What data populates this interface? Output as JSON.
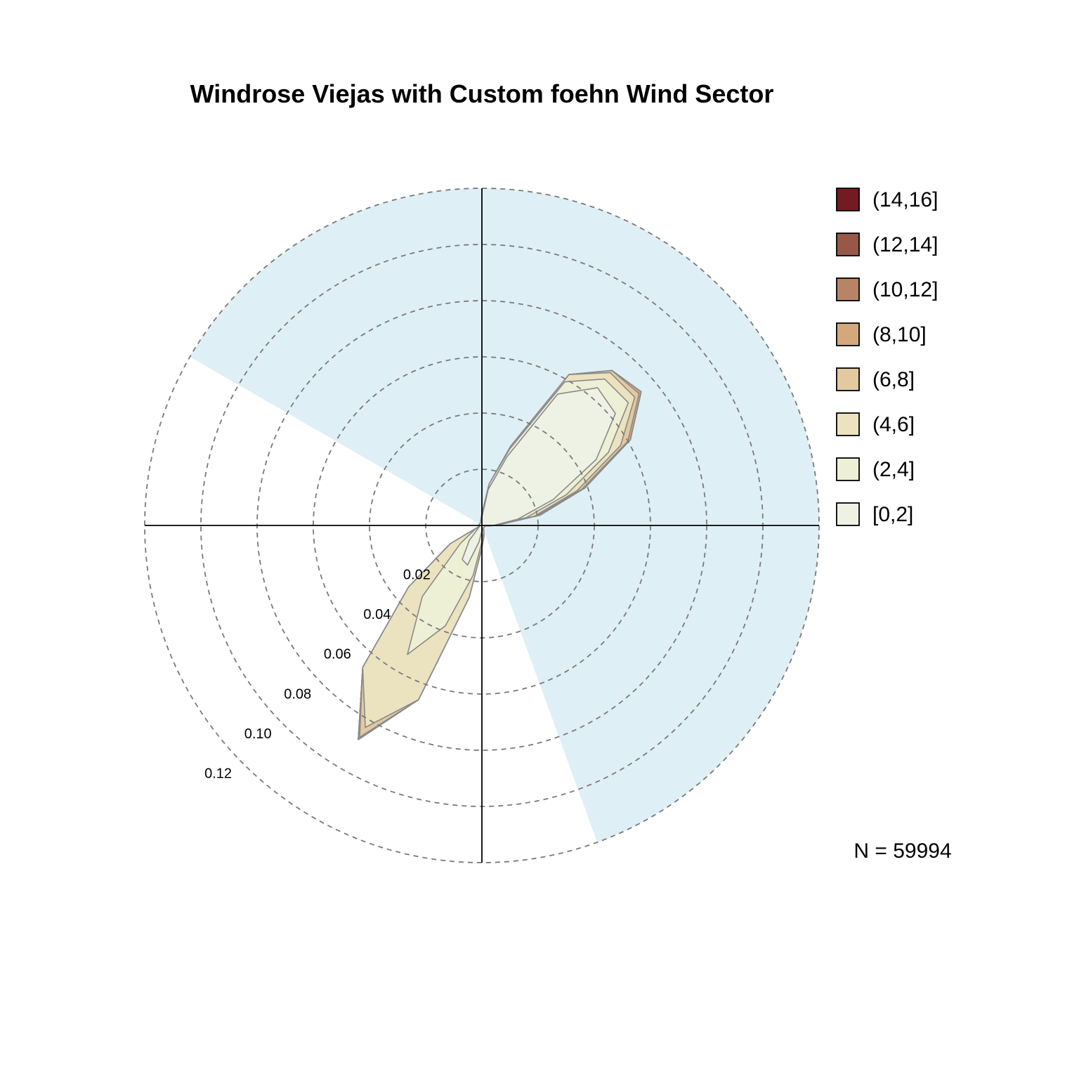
{
  "chart_data": {
    "type": "area",
    "subtype": "polar-windrose",
    "title": "Windrose Viejas with Custom foehn Wind Sector",
    "radial_axis": {
      "ticks": [
        0.02,
        0.04,
        0.06,
        0.08,
        0.1,
        0.12
      ],
      "tick_labels": [
        "0.02",
        "0.04",
        "0.06",
        "0.08",
        "0.10",
        "0.12"
      ],
      "max": 0.12,
      "grid": "dashed circles"
    },
    "foehn_sector": {
      "from_deg": 0,
      "to_deg": 360,
      "exclude_from_deg": 160,
      "exclude_to_deg": 300,
      "color": "#dfeff6"
    },
    "directions_deg": [
      0,
      10,
      20,
      30,
      40,
      50,
      60,
      70,
      80,
      90,
      100,
      110,
      120,
      130,
      140,
      150,
      160,
      170,
      180,
      190,
      200,
      210,
      220,
      230,
      240,
      250,
      260,
      270,
      280,
      290,
      300,
      310,
      320,
      330,
      340,
      350
    ],
    "series": [
      {
        "name": "[0,2]",
        "color": "#eef2e4",
        "values": [
          0.003,
          0.013,
          0.026,
          0.054,
          0.064,
          0.062,
          0.047,
          0.027,
          0.013,
          0.004,
          0.001,
          0.001,
          0.001,
          0.001,
          0.001,
          0.001,
          0.001,
          0.002,
          0.002,
          0.006,
          0.015,
          0.014,
          0.007,
          0.002,
          0.001,
          0.001,
          0.001,
          0.001,
          0.001,
          0.001,
          0.001,
          0.001,
          0.001,
          0.001,
          0.001,
          0.002
        ]
      },
      {
        "name": "(2,4]",
        "color": "#eef0d5",
        "values": [
          0.004,
          0.015,
          0.029,
          0.059,
          0.068,
          0.068,
          0.052,
          0.032,
          0.016,
          0.004,
          0.001,
          0.001,
          0.001,
          0.001,
          0.001,
          0.001,
          0.002,
          0.003,
          0.006,
          0.018,
          0.038,
          0.053,
          0.033,
          0.01,
          0.003,
          0.001,
          0.001,
          0.001,
          0.001,
          0.001,
          0.001,
          0.001,
          0.001,
          0.001,
          0.001,
          0.002
        ]
      },
      {
        "name": "(4,6]",
        "color": "#ebe2bf",
        "values": [
          0.004,
          0.015,
          0.03,
          0.062,
          0.071,
          0.071,
          0.057,
          0.036,
          0.019,
          0.005,
          0.001,
          0.001,
          0.001,
          0.001,
          0.001,
          0.001,
          0.002,
          0.004,
          0.008,
          0.026,
          0.066,
          0.083,
          0.066,
          0.034,
          0.013,
          0.001,
          0.001,
          0.001,
          0.001,
          0.001,
          0.001,
          0.001,
          0.001,
          0.001,
          0.001,
          0.002
        ]
      },
      {
        "name": "(6,8]",
        "color": "#e3c9a0",
        "values": [
          0.004,
          0.015,
          0.03,
          0.062,
          0.072,
          0.073,
          0.06,
          0.038,
          0.02,
          0.005,
          0.001,
          0.001,
          0.001,
          0.001,
          0.001,
          0.001,
          0.002,
          0.004,
          0.008,
          0.026,
          0.066,
          0.087,
          0.066,
          0.034,
          0.013,
          0.001,
          0.001,
          0.001,
          0.001,
          0.001,
          0.001,
          0.001,
          0.001,
          0.001,
          0.001,
          0.002
        ]
      },
      {
        "name": "(8,10]",
        "color": "#d3a87c",
        "values": [
          0.004,
          0.015,
          0.03,
          0.062,
          0.072,
          0.074,
          0.061,
          0.039,
          0.021,
          0.005,
          0.001,
          0.001,
          0.001,
          0.001,
          0.001,
          0.001,
          0.002,
          0.004,
          0.008,
          0.026,
          0.066,
          0.088,
          0.066,
          0.034,
          0.013,
          0.001,
          0.001,
          0.001,
          0.001,
          0.001,
          0.001,
          0.001,
          0.001,
          0.001,
          0.001,
          0.002
        ]
      },
      {
        "name": "(10,12]",
        "color": "#b98466",
        "values": [
          0.004,
          0.015,
          0.03,
          0.062,
          0.072,
          0.074,
          0.061,
          0.039,
          0.021,
          0.005,
          0.001,
          0.001,
          0.001,
          0.001,
          0.001,
          0.001,
          0.002,
          0.004,
          0.008,
          0.026,
          0.066,
          0.088,
          0.066,
          0.034,
          0.013,
          0.001,
          0.001,
          0.001,
          0.001,
          0.001,
          0.001,
          0.001,
          0.001,
          0.001,
          0.001,
          0.002
        ]
      },
      {
        "name": "(12,14]",
        "color": "#985847",
        "values": [
          0.004,
          0.015,
          0.03,
          0.062,
          0.072,
          0.074,
          0.061,
          0.039,
          0.021,
          0.005,
          0.001,
          0.001,
          0.001,
          0.001,
          0.001,
          0.001,
          0.002,
          0.004,
          0.008,
          0.026,
          0.066,
          0.088,
          0.066,
          0.034,
          0.013,
          0.001,
          0.001,
          0.001,
          0.001,
          0.001,
          0.001,
          0.001,
          0.001,
          0.001,
          0.001,
          0.002
        ]
      },
      {
        "name": "(14,16]",
        "color": "#741b22",
        "values": [
          0.004,
          0.015,
          0.03,
          0.062,
          0.072,
          0.074,
          0.061,
          0.039,
          0.021,
          0.005,
          0.001,
          0.001,
          0.001,
          0.001,
          0.001,
          0.001,
          0.002,
          0.004,
          0.008,
          0.026,
          0.066,
          0.088,
          0.066,
          0.034,
          0.013,
          0.001,
          0.001,
          0.001,
          0.001,
          0.001,
          0.001,
          0.001,
          0.001,
          0.001,
          0.001,
          0.002
        ]
      }
    ],
    "legend": {
      "placement": "right",
      "entries": [
        {
          "label": "(14,16]",
          "color": "#741b22"
        },
        {
          "label": "(12,14]",
          "color": "#985847"
        },
        {
          "label": "(10,12]",
          "color": "#b98466"
        },
        {
          "label": "(8,10]",
          "color": "#d3a87c"
        },
        {
          "label": "(6,8]",
          "color": "#e3c9a0"
        },
        {
          "label": "(4,6]",
          "color": "#ebe2bf"
        },
        {
          "label": "(2,4]",
          "color": "#eef0d5"
        },
        {
          "label": "[0,2]",
          "color": "#eef2e4"
        }
      ]
    },
    "n_label": "N = 59994"
  }
}
